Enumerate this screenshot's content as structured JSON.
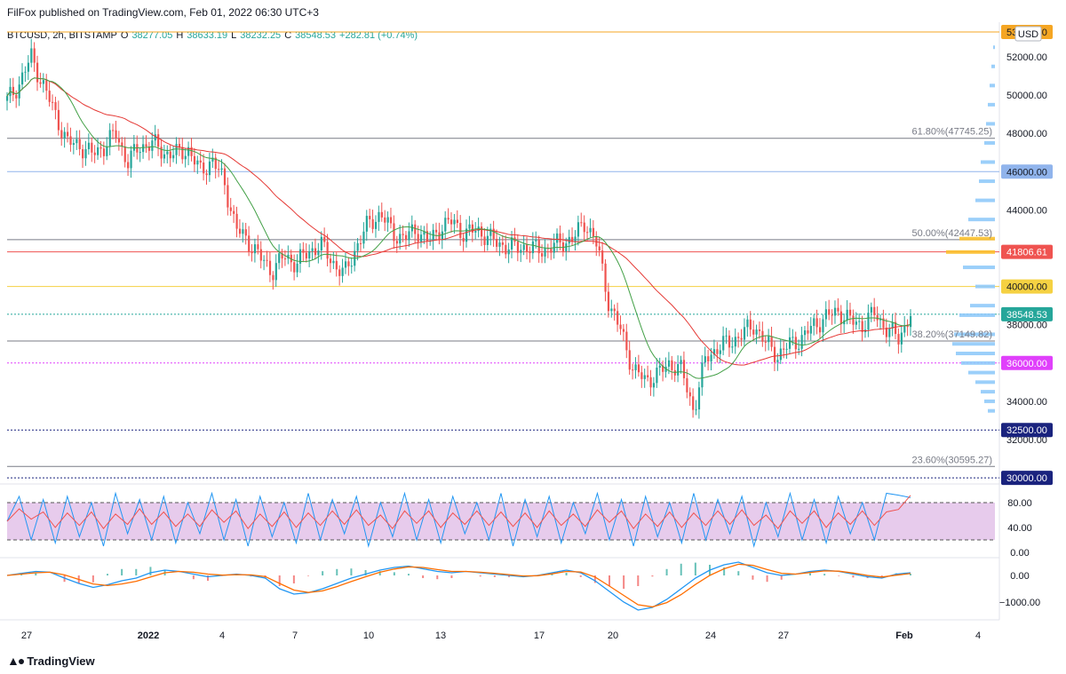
{
  "header": {
    "published": "FilFox published on TradingView.com, Feb 01, 2022 06:30 UTC+3"
  },
  "ohlc": {
    "symbol": "BTCUSD, 2h, BITSTAMP",
    "o_label": "O",
    "o": "38277.05",
    "h_label": "H",
    "h": "38633.19",
    "l_label": "L",
    "l": "38232.25",
    "c_label": "C",
    "c": "38548.53",
    "change": "+282.81 (+0.74%)"
  },
  "currency": "USD",
  "footer": {
    "brand": "TradingView"
  },
  "colors": {
    "up": "#26a69a",
    "down": "#ef5350",
    "ma_red": "#e53935",
    "ma_green": "#43a047",
    "stoch_k": "#2196f3",
    "stoch_d": "#ef5350",
    "macd": "#2196f3",
    "signal": "#ff6d00",
    "stoch_band": "#e1bee7"
  },
  "chart_data": {
    "type": "candlestick",
    "price_axis": {
      "ticks": [
        "52000.00",
        "50000.00",
        "48000.00",
        "44000.00",
        "38000.00",
        "34000.00",
        "32000.00"
      ],
      "tick_values": [
        52000,
        50000,
        48000,
        44000,
        38000,
        34000,
        32000
      ],
      "range": [
        29900,
        53300
      ]
    },
    "time_axis": {
      "labels": [
        "27",
        "2022",
        "4",
        "7",
        "10",
        "13",
        "17",
        "20",
        "24",
        "27",
        "Feb",
        "4"
      ]
    },
    "horizontal_levels": [
      {
        "value": 53300,
        "label": "53300.00",
        "color": "#f5a623"
      },
      {
        "value": 46000,
        "label": "46000.00",
        "color": "#90b4ec"
      },
      {
        "value": 41806.61,
        "label": "41806.61",
        "color": "#ef5350"
      },
      {
        "value": 40000,
        "label": "40000.00",
        "color": "#f5d142"
      },
      {
        "value": 38548.53,
        "label": "38548.53",
        "color": "#26a69a"
      },
      {
        "value": 36000,
        "label": "36000.00",
        "color": "#e040fb"
      },
      {
        "value": 32500,
        "label": "32500.00",
        "color": "#1a237e"
      },
      {
        "value": 30000,
        "label": "30000.00",
        "color": "#1a237e"
      }
    ],
    "fibonacci": [
      {
        "value": 47745.25,
        "label": "61.80%(47745.25)"
      },
      {
        "value": 42447.53,
        "label": "50.00%(42447.53)"
      },
      {
        "value": 37149.82,
        "label": "38.20%(37149.82)"
      },
      {
        "value": 30595.27,
        "label": "23.60%(30595.27)"
      }
    ],
    "price_path": [
      [
        0,
        49700
      ],
      [
        1,
        50600
      ],
      [
        2,
        52000
      ],
      [
        3,
        50500
      ],
      [
        4,
        49000
      ],
      [
        5,
        47500
      ],
      [
        6,
        47400
      ],
      [
        7,
        46900
      ],
      [
        8,
        47300
      ],
      [
        9,
        48000
      ],
      [
        10,
        46500
      ],
      [
        11,
        47300
      ],
      [
        12,
        47500
      ],
      [
        13,
        47000
      ],
      [
        14,
        46900
      ],
      [
        15,
        47200
      ],
      [
        16,
        46000
      ],
      [
        17,
        46600
      ],
      [
        18,
        45500
      ],
      [
        19,
        43000
      ],
      [
        20,
        42400
      ],
      [
        21,
        41500
      ],
      [
        22,
        40800
      ],
      [
        23,
        41600
      ],
      [
        24,
        41200
      ],
      [
        25,
        41800
      ],
      [
        26,
        42200
      ],
      [
        27,
        41300
      ],
      [
        28,
        40600
      ],
      [
        29,
        42100
      ],
      [
        30,
        43300
      ],
      [
        31,
        43800
      ],
      [
        32,
        42800
      ],
      [
        33,
        42500
      ],
      [
        34,
        43000
      ],
      [
        35,
        42300
      ],
      [
        36,
        43100
      ],
      [
        37,
        43400
      ],
      [
        38,
        42700
      ],
      [
        39,
        43000
      ],
      [
        40,
        42500
      ],
      [
        41,
        42200
      ],
      [
        42,
        42000
      ],
      [
        43,
        42100
      ],
      [
        44,
        41900
      ],
      [
        45,
        42000
      ],
      [
        46,
        42300
      ],
      [
        47,
        42500
      ],
      [
        48,
        43400
      ],
      [
        49,
        42100
      ],
      [
        50,
        39000
      ],
      [
        51,
        37600
      ],
      [
        52,
        35600
      ],
      [
        53,
        35100
      ],
      [
        54,
        35400
      ],
      [
        55,
        36000
      ],
      [
        56,
        35600
      ],
      [
        57,
        33500
      ],
      [
        58,
        36300
      ],
      [
        59,
        36800
      ],
      [
        60,
        37100
      ],
      [
        61,
        37500
      ],
      [
        62,
        38000
      ],
      [
        63,
        37000
      ],
      [
        64,
        36400
      ],
      [
        65,
        37000
      ],
      [
        66,
        37300
      ],
      [
        67,
        38000
      ],
      [
        68,
        38400
      ],
      [
        69,
        38700
      ],
      [
        70,
        38200
      ],
      [
        71,
        38000
      ],
      [
        72,
        38600
      ],
      [
        73,
        37800
      ],
      [
        74,
        37300
      ],
      [
        75,
        38548.53
      ]
    ],
    "volume_profile": [
      [
        52500,
        2
      ],
      [
        51500,
        4
      ],
      [
        50500,
        6
      ],
      [
        49500,
        8
      ],
      [
        48500,
        10
      ],
      [
        47500,
        12
      ],
      [
        46500,
        16
      ],
      [
        45500,
        18
      ],
      [
        44500,
        22
      ],
      [
        43500,
        30
      ],
      [
        42500,
        40
      ],
      [
        41800,
        55
      ],
      [
        41000,
        36
      ],
      [
        40000,
        22
      ],
      [
        39000,
        28
      ],
      [
        38500,
        40
      ],
      [
        37500,
        46
      ],
      [
        37000,
        48
      ],
      [
        36500,
        44
      ],
      [
        36000,
        38
      ],
      [
        35500,
        30
      ],
      [
        35000,
        22
      ],
      [
        34500,
        16
      ],
      [
        34000,
        12
      ],
      [
        33500,
        8
      ]
    ],
    "stochastic": {
      "ticks": [
        "80.00",
        "40.00",
        "0.00"
      ],
      "tick_values": [
        80,
        40,
        0
      ],
      "band": [
        20,
        80
      ],
      "k": [
        50,
        90,
        20,
        85,
        15,
        90,
        25,
        80,
        10,
        95,
        30,
        85,
        20,
        90,
        15,
        80,
        30,
        95,
        20,
        85,
        10,
        90,
        25,
        80,
        15,
        95,
        20,
        85,
        30,
        90,
        10,
        80,
        25,
        95,
        20,
        85,
        15,
        90,
        30,
        80,
        20,
        95,
        10,
        85,
        25,
        90,
        15,
        80,
        30,
        95,
        20,
        85,
        10,
        90,
        25,
        80,
        15,
        95,
        20,
        85,
        30,
        90,
        10,
        80,
        25,
        95,
        20,
        85,
        15,
        90,
        30,
        80,
        20,
        95,
        92,
        88
      ]
    },
    "macd": {
      "ticks": [
        "0.00",
        "−1000.00"
      ],
      "tick_values": [
        0,
        -1000
      ],
      "macd": [
        0,
        80,
        150,
        120,
        -100,
        -300,
        -450,
        -350,
        -200,
        -100,
        100,
        200,
        150,
        50,
        -50,
        0,
        50,
        0,
        -100,
        -500,
        -700,
        -650,
        -500,
        -300,
        -100,
        50,
        200,
        300,
        350,
        250,
        150,
        100,
        150,
        100,
        50,
        0,
        -50,
        0,
        100,
        200,
        100,
        -200,
        -600,
        -1000,
        -1300,
        -1200,
        -900,
        -500,
        -100,
        200,
        400,
        500,
        300,
        100,
        0,
        50,
        150,
        200,
        150,
        50,
        -50,
        -100,
        50,
        100
      ],
      "signal": [
        0,
        50,
        100,
        120,
        20,
        -150,
        -320,
        -380,
        -320,
        -220,
        -60,
        100,
        150,
        120,
        50,
        10,
        30,
        20,
        -40,
        -300,
        -550,
        -640,
        -580,
        -420,
        -230,
        -50,
        120,
        240,
        320,
        300,
        220,
        150,
        150,
        120,
        80,
        30,
        -20,
        -10,
        60,
        150,
        130,
        -60,
        -400,
        -750,
        -1100,
        -1180,
        -1020,
        -720,
        -340,
        0,
        250,
        420,
        380,
        220,
        80,
        50,
        110,
        170,
        160,
        90,
        0,
        -60,
        10,
        70
      ]
    }
  }
}
